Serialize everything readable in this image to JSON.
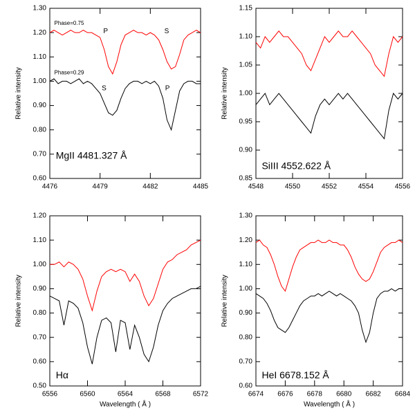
{
  "chart_data": [
    {
      "type": "line",
      "ylabel": "Relative intensity",
      "annotations": [
        "Phase=0.75",
        "P",
        "S",
        "Phase=0.29",
        "S",
        "P",
        "MgII 4481.327 Å"
      ],
      "xlim": [
        4476,
        4485
      ],
      "xticks": [
        4476,
        4479,
        4482,
        4485
      ],
      "ylim": [
        0.6,
        1.3
      ],
      "yticks": [
        {
          "value": 0.6,
          "label": "0.60"
        },
        {
          "value": 0.7,
          "label": "0.70"
        },
        {
          "value": 0.8,
          "label": "0.80"
        },
        {
          "value": 0.9,
          "label": "0.90"
        },
        {
          "value": 1.0,
          "label": "1.00"
        },
        {
          "value": 1.1,
          "label": "1.10"
        },
        {
          "value": 1.2,
          "label": "1.20"
        },
        {
          "value": 1.3,
          "label": "1.30"
        }
      ],
      "x": [
        4476,
        4476.25,
        4476.5,
        4476.75,
        4477,
        4477.25,
        4477.5,
        4477.75,
        4478,
        4478.25,
        4478.5,
        4478.75,
        4479,
        4479.25,
        4479.5,
        4479.75,
        4480,
        4480.25,
        4480.5,
        4480.75,
        4481,
        4481.25,
        4481.5,
        4481.75,
        4482,
        4482.25,
        4482.5,
        4482.75,
        4483,
        4483.25,
        4483.5,
        4483.75,
        4484,
        4484.25,
        4484.5,
        4484.75,
        4485
      ],
      "series": [
        {
          "color": "#ff0000",
          "values": [
            1.2,
            1.21,
            1.2,
            1.19,
            1.2,
            1.21,
            1.2,
            1.2,
            1.21,
            1.2,
            1.2,
            1.19,
            1.18,
            1.13,
            1.06,
            1.03,
            1.08,
            1.15,
            1.19,
            1.2,
            1.21,
            1.2,
            1.2,
            1.19,
            1.2,
            1.19,
            1.17,
            1.13,
            1.08,
            1.05,
            1.06,
            1.11,
            1.17,
            1.19,
            1.2,
            1.21,
            1.2
          ]
        },
        {
          "color": "#000000",
          "values": [
            1.0,
            1.01,
            0.99,
            1.0,
            1.0,
            0.99,
            1.0,
            1.01,
            0.99,
            1.0,
            0.99,
            0.97,
            0.95,
            0.91,
            0.87,
            0.86,
            0.88,
            0.93,
            0.97,
            0.99,
            1.0,
            1.0,
            0.99,
            1.0,
            0.99,
            1.0,
            0.98,
            0.93,
            0.84,
            0.8,
            0.88,
            0.96,
            0.99,
            1.0,
            1.0,
            0.99,
            0.99
          ]
        }
      ]
    },
    {
      "type": "line",
      "ylabel": "Relative intensity",
      "annotations": [
        "SiIII 4552.622 Å"
      ],
      "xlim": [
        4548,
        4556
      ],
      "xticks": [
        4548,
        4550,
        4552,
        4554,
        4556
      ],
      "ylim": [
        0.85,
        1.15
      ],
      "yticks": [
        {
          "value": 0.85,
          "label": "0.85"
        },
        {
          "value": 0.9,
          "label": "0.90"
        },
        {
          "value": 0.95,
          "label": "0.95"
        },
        {
          "value": 1.0,
          "label": "1.00"
        },
        {
          "value": 1.05,
          "label": "1.05"
        },
        {
          "value": 1.1,
          "label": "1.10"
        },
        {
          "value": 1.15,
          "label": "1.15"
        }
      ],
      "x": [
        4548,
        4548.25,
        4548.5,
        4548.75,
        4549,
        4549.25,
        4549.5,
        4549.75,
        4550,
        4550.25,
        4550.5,
        4550.75,
        4551,
        4551.25,
        4551.5,
        4551.75,
        4552,
        4552.25,
        4552.5,
        4552.75,
        4553,
        4553.25,
        4553.5,
        4553.75,
        4554,
        4554.25,
        4554.5,
        4554.75,
        4555,
        4555.25,
        4555.5,
        4555.75,
        4556
      ],
      "series": [
        {
          "color": "#ff0000",
          "values": [
            1.09,
            1.08,
            1.1,
            1.09,
            1.1,
            1.11,
            1.1,
            1.1,
            1.09,
            1.08,
            1.07,
            1.05,
            1.04,
            1.06,
            1.08,
            1.1,
            1.09,
            1.1,
            1.11,
            1.1,
            1.1,
            1.11,
            1.1,
            1.09,
            1.08,
            1.07,
            1.05,
            1.04,
            1.03,
            1.07,
            1.1,
            1.09,
            1.1
          ]
        },
        {
          "color": "#000000",
          "values": [
            0.98,
            0.99,
            1.0,
            0.98,
            0.99,
            1.0,
            0.99,
            0.98,
            0.97,
            0.96,
            0.95,
            0.94,
            0.93,
            0.96,
            0.98,
            0.99,
            0.98,
            0.99,
            1.0,
            0.99,
            1.0,
            0.99,
            0.98,
            0.97,
            0.96,
            0.95,
            0.94,
            0.93,
            0.92,
            0.97,
            1.0,
            0.99,
            1.0
          ]
        }
      ]
    },
    {
      "type": "line",
      "ylabel": "Relative intensity",
      "xlabel": "Wavelength ( Å )",
      "annotations": [
        "Hα"
      ],
      "xlim": [
        6556,
        6572
      ],
      "xticks": [
        6556,
        6560,
        6564,
        6568,
        6572
      ],
      "ylim": [
        0.5,
        1.2
      ],
      "yticks": [
        {
          "value": 0.5,
          "label": "0.50"
        },
        {
          "value": 0.6,
          "label": "0.60"
        },
        {
          "value": 0.7,
          "label": "0.70"
        },
        {
          "value": 0.8,
          "label": "0.80"
        },
        {
          "value": 0.9,
          "label": "0.90"
        },
        {
          "value": 1.0,
          "label": "1.00"
        },
        {
          "value": 1.1,
          "label": "1.10"
        },
        {
          "value": 1.2,
          "label": "1.20"
        }
      ],
      "x": [
        6556,
        6556.5,
        6557,
        6557.5,
        6558,
        6558.5,
        6559,
        6559.5,
        6560,
        6560.5,
        6561,
        6561.5,
        6562,
        6562.5,
        6563,
        6563.5,
        6564,
        6564.5,
        6565,
        6565.5,
        6566,
        6566.5,
        6567,
        6567.5,
        6568,
        6568.5,
        6569,
        6569.5,
        6570,
        6570.5,
        6571,
        6571.5,
        6572
      ],
      "series": [
        {
          "color": "#ff0000",
          "values": [
            1.0,
            1.0,
            1.01,
            0.99,
            1.01,
            1.0,
            0.98,
            0.94,
            0.87,
            0.81,
            0.89,
            0.95,
            0.97,
            0.98,
            0.97,
            0.98,
            0.97,
            0.93,
            0.96,
            0.93,
            0.87,
            0.83,
            0.86,
            0.92,
            0.98,
            1.01,
            1.02,
            1.04,
            1.05,
            1.06,
            1.08,
            1.09,
            1.1
          ]
        },
        {
          "color": "#000000",
          "values": [
            0.87,
            0.86,
            0.85,
            0.75,
            0.85,
            0.84,
            0.82,
            0.76,
            0.66,
            0.59,
            0.7,
            0.77,
            0.78,
            0.76,
            0.64,
            0.77,
            0.76,
            0.65,
            0.75,
            0.7,
            0.63,
            0.6,
            0.66,
            0.75,
            0.81,
            0.84,
            0.86,
            0.87,
            0.88,
            0.89,
            0.9,
            0.9,
            0.91
          ]
        }
      ]
    },
    {
      "type": "line",
      "ylabel": "Relative intensity",
      "xlabel": "Wavelength ( Å )",
      "annotations": [
        "HeI 6678.152 Å"
      ],
      "xlim": [
        6674,
        6684
      ],
      "xticks": [
        6674,
        6676,
        6678,
        6680,
        6682,
        6684
      ],
      "ylim": [
        0.6,
        1.3
      ],
      "yticks": [
        {
          "value": 0.6,
          "label": "0.60"
        },
        {
          "value": 0.7,
          "label": "0.70"
        },
        {
          "value": 0.8,
          "label": "0.80"
        },
        {
          "value": 0.9,
          "label": "0.90"
        },
        {
          "value": 1.0,
          "label": "1.00"
        },
        {
          "value": 1.1,
          "label": "1.10"
        },
        {
          "value": 1.2,
          "label": "1.20"
        },
        {
          "value": 1.3,
          "label": "1.30"
        }
      ],
      "x": [
        6674,
        6674.25,
        6674.5,
        6674.75,
        6675,
        6675.25,
        6675.5,
        6675.75,
        6676,
        6676.25,
        6676.5,
        6676.75,
        6677,
        6677.25,
        6677.5,
        6677.75,
        6678,
        6678.25,
        6678.5,
        6678.75,
        6679,
        6679.25,
        6679.5,
        6679.75,
        6680,
        6680.25,
        6680.5,
        6680.75,
        6681,
        6681.25,
        6681.5,
        6681.75,
        6682,
        6682.25,
        6682.5,
        6682.75,
        6683,
        6683.25,
        6683.5,
        6683.75,
        6684
      ],
      "series": [
        {
          "color": "#ff0000",
          "values": [
            1.19,
            1.2,
            1.18,
            1.17,
            1.14,
            1.1,
            1.05,
            1.01,
            0.99,
            1.04,
            1.09,
            1.13,
            1.16,
            1.17,
            1.18,
            1.19,
            1.19,
            1.2,
            1.19,
            1.19,
            1.2,
            1.19,
            1.19,
            1.18,
            1.18,
            1.16,
            1.13,
            1.09,
            1.06,
            1.04,
            1.03,
            1.04,
            1.07,
            1.11,
            1.15,
            1.17,
            1.18,
            1.19,
            1.19,
            1.2,
            1.19
          ]
        },
        {
          "color": "#000000",
          "values": [
            0.98,
            0.97,
            0.96,
            0.94,
            0.91,
            0.87,
            0.84,
            0.83,
            0.82,
            0.84,
            0.87,
            0.9,
            0.93,
            0.95,
            0.96,
            0.97,
            0.97,
            0.98,
            0.97,
            0.98,
            0.99,
            0.98,
            0.97,
            0.98,
            0.97,
            0.96,
            0.95,
            0.93,
            0.9,
            0.83,
            0.78,
            0.82,
            0.9,
            0.96,
            0.98,
            0.99,
            0.99,
            1.0,
            0.99,
            1.0,
            1.0
          ]
        }
      ]
    }
  ]
}
